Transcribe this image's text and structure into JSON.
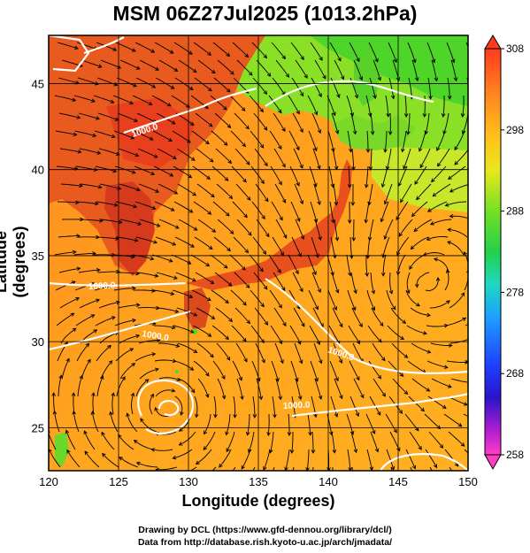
{
  "title": "MSM 06Z27Jul2025 (1013.2hPa)",
  "xlabel": "Longitude (degrees)",
  "ylabel": "Latitude  (degrees)",
  "credits": {
    "line1": "Drawing by DCL (https://www.gfd-dennou.org/library/dcl/)",
    "line2": "Data from http://database.rish.kyoto-u.ac.jp/arch/jmadata/"
  },
  "map": {
    "x_ticks": [
      "120",
      "125",
      "130",
      "135",
      "140",
      "145",
      "150"
    ],
    "y_ticks": [
      "25",
      "30",
      "35",
      "40",
      "45"
    ],
    "contour_labels": [
      "1000.0",
      "1000.0",
      "1000.0",
      "1000.0",
      "1000.0"
    ],
    "colorbar_ticks": [
      "308",
      "298",
      "288",
      "278",
      "268",
      "258"
    ],
    "colors": {
      "sea": "#ffa21e",
      "land_hot": "#e8401c",
      "land_cool": "#76de24",
      "contour": "#ffffff",
      "streamline": "#000000"
    }
  }
}
